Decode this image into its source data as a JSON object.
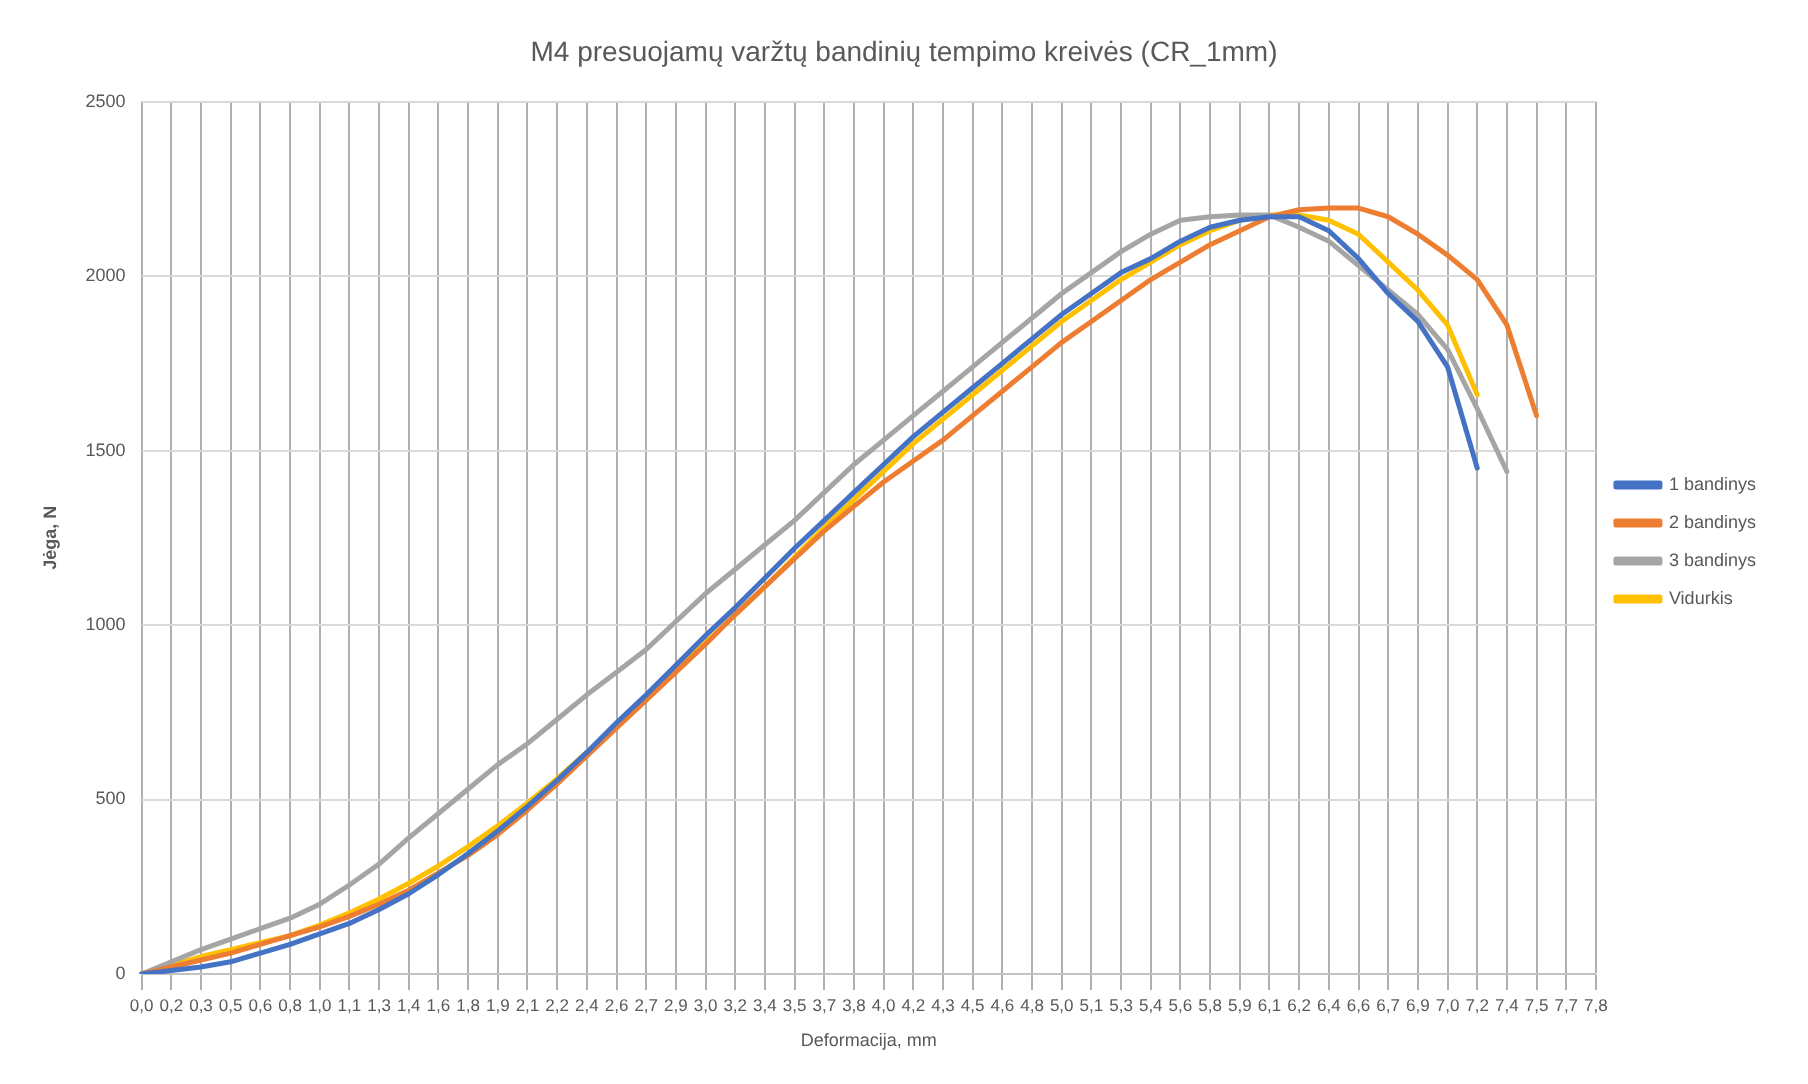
{
  "chart_data": {
    "type": "line",
    "title": "M4 presuojamų varžtų bandinių tempimo kreivės (CR_1mm)",
    "xlabel": "Deformacija, mm",
    "ylabel": "Jėga, N",
    "categories": [
      "0,0",
      "0,2",
      "0,3",
      "0,5",
      "0,6",
      "0,8",
      "1,0",
      "1,1",
      "1,3",
      "1,4",
      "1,6",
      "1,8",
      "1,9",
      "2,1",
      "2,2",
      "2,4",
      "2,6",
      "2,7",
      "2,9",
      "3,0",
      "3,2",
      "3,4",
      "3,5",
      "3,7",
      "3,8",
      "4,0",
      "4,2",
      "4,3",
      "4,5",
      "4,6",
      "4,8",
      "5,0",
      "5,1",
      "5,3",
      "5,4",
      "5,6",
      "5,8",
      "5,9",
      "6,1",
      "6,2",
      "6,4",
      "6,6",
      "6,7",
      "6,9",
      "7,0",
      "7,2",
      "7,4",
      "7,5",
      "7,7",
      "7,8"
    ],
    "series": [
      {
        "name": "1 bandinys",
        "color": "#4472c4",
        "values": [
          0,
          10,
          20,
          35,
          60,
          85,
          115,
          145,
          185,
          230,
          285,
          345,
          410,
          480,
          555,
          635,
          720,
          800,
          885,
          970,
          1050,
          1135,
          1220,
          1300,
          1380,
          1460,
          1540,
          1610,
          1680,
          1750,
          1820,
          1890,
          1950,
          2010,
          2050,
          2100,
          2140,
          2160,
          2170,
          2170,
          2130,
          2050,
          1950,
          1870,
          1740,
          1450,
          null,
          null,
          null,
          null
        ]
      },
      {
        "name": "2 bandinys",
        "color": "#ed7d31",
        "values": [
          0,
          20,
          40,
          60,
          85,
          110,
          135,
          165,
          200,
          240,
          290,
          340,
          400,
          470,
          545,
          625,
          705,
          785,
          865,
          945,
          1030,
          1110,
          1190,
          1270,
          1340,
          1410,
          1470,
          1530,
          1600,
          1670,
          1740,
          1810,
          1870,
          1930,
          1990,
          2040,
          2090,
          2130,
          2170,
          2190,
          2195,
          2195,
          2170,
          2120,
          2060,
          1990,
          1860,
          1600,
          null,
          null
        ]
      },
      {
        "name": "3 bandinys",
        "color": "#a5a5a5",
        "values": [
          0,
          35,
          70,
          100,
          130,
          160,
          200,
          255,
          315,
          390,
          460,
          530,
          600,
          660,
          730,
          800,
          865,
          930,
          1010,
          1090,
          1160,
          1230,
          1300,
          1380,
          1460,
          1530,
          1600,
          1670,
          1740,
          1810,
          1880,
          1950,
          2010,
          2070,
          2120,
          2160,
          2170,
          2175,
          2175,
          2140,
          2100,
          2030,
          1960,
          1890,
          1790,
          1620,
          1440,
          null,
          null,
          null
        ]
      },
      {
        "name": "Vidurkis",
        "color": "#ffc000",
        "values": [
          0,
          25,
          50,
          70,
          90,
          110,
          140,
          175,
          215,
          260,
          310,
          365,
          425,
          490,
          560,
          635,
          710,
          790,
          870,
          950,
          1030,
          1110,
          1195,
          1280,
          1360,
          1440,
          1520,
          1590,
          1660,
          1730,
          1800,
          1870,
          1930,
          1990,
          2040,
          2090,
          2130,
          2160,
          2175,
          2175,
          2160,
          2120,
          2040,
          1960,
          1860,
          1660,
          null,
          null,
          null,
          null
        ]
      }
    ],
    "ylim": [
      0,
      2500
    ],
    "yticks": [
      0,
      500,
      1000,
      1500,
      2000,
      2500
    ],
    "grid": true,
    "legend": "right",
    "marker": "none",
    "line_style": "solid"
  }
}
